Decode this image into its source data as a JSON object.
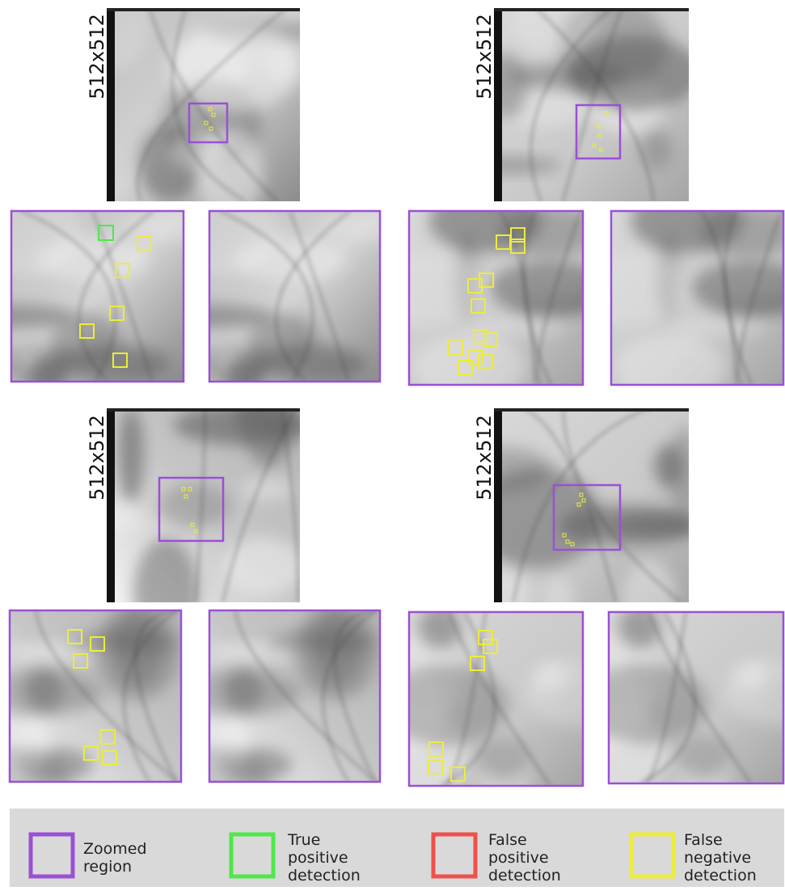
{
  "panels": [
    {
      "label": "512x512"
    },
    {
      "label": "512x512"
    },
    {
      "label": "512x512"
    },
    {
      "label": "512x512"
    }
  ],
  "legend": [
    {
      "lines": [
        "Zoomed",
        "region"
      ],
      "color": "#9b4fd6"
    },
    {
      "lines": [
        "True",
        "positive",
        "detection"
      ],
      "color": "#4ee84a"
    },
    {
      "lines": [
        "False",
        "positive",
        "detection"
      ],
      "color": "#f0504a"
    },
    {
      "lines": [
        "False",
        "negative",
        "detection"
      ],
      "color": "#ecec3c"
    }
  ]
}
